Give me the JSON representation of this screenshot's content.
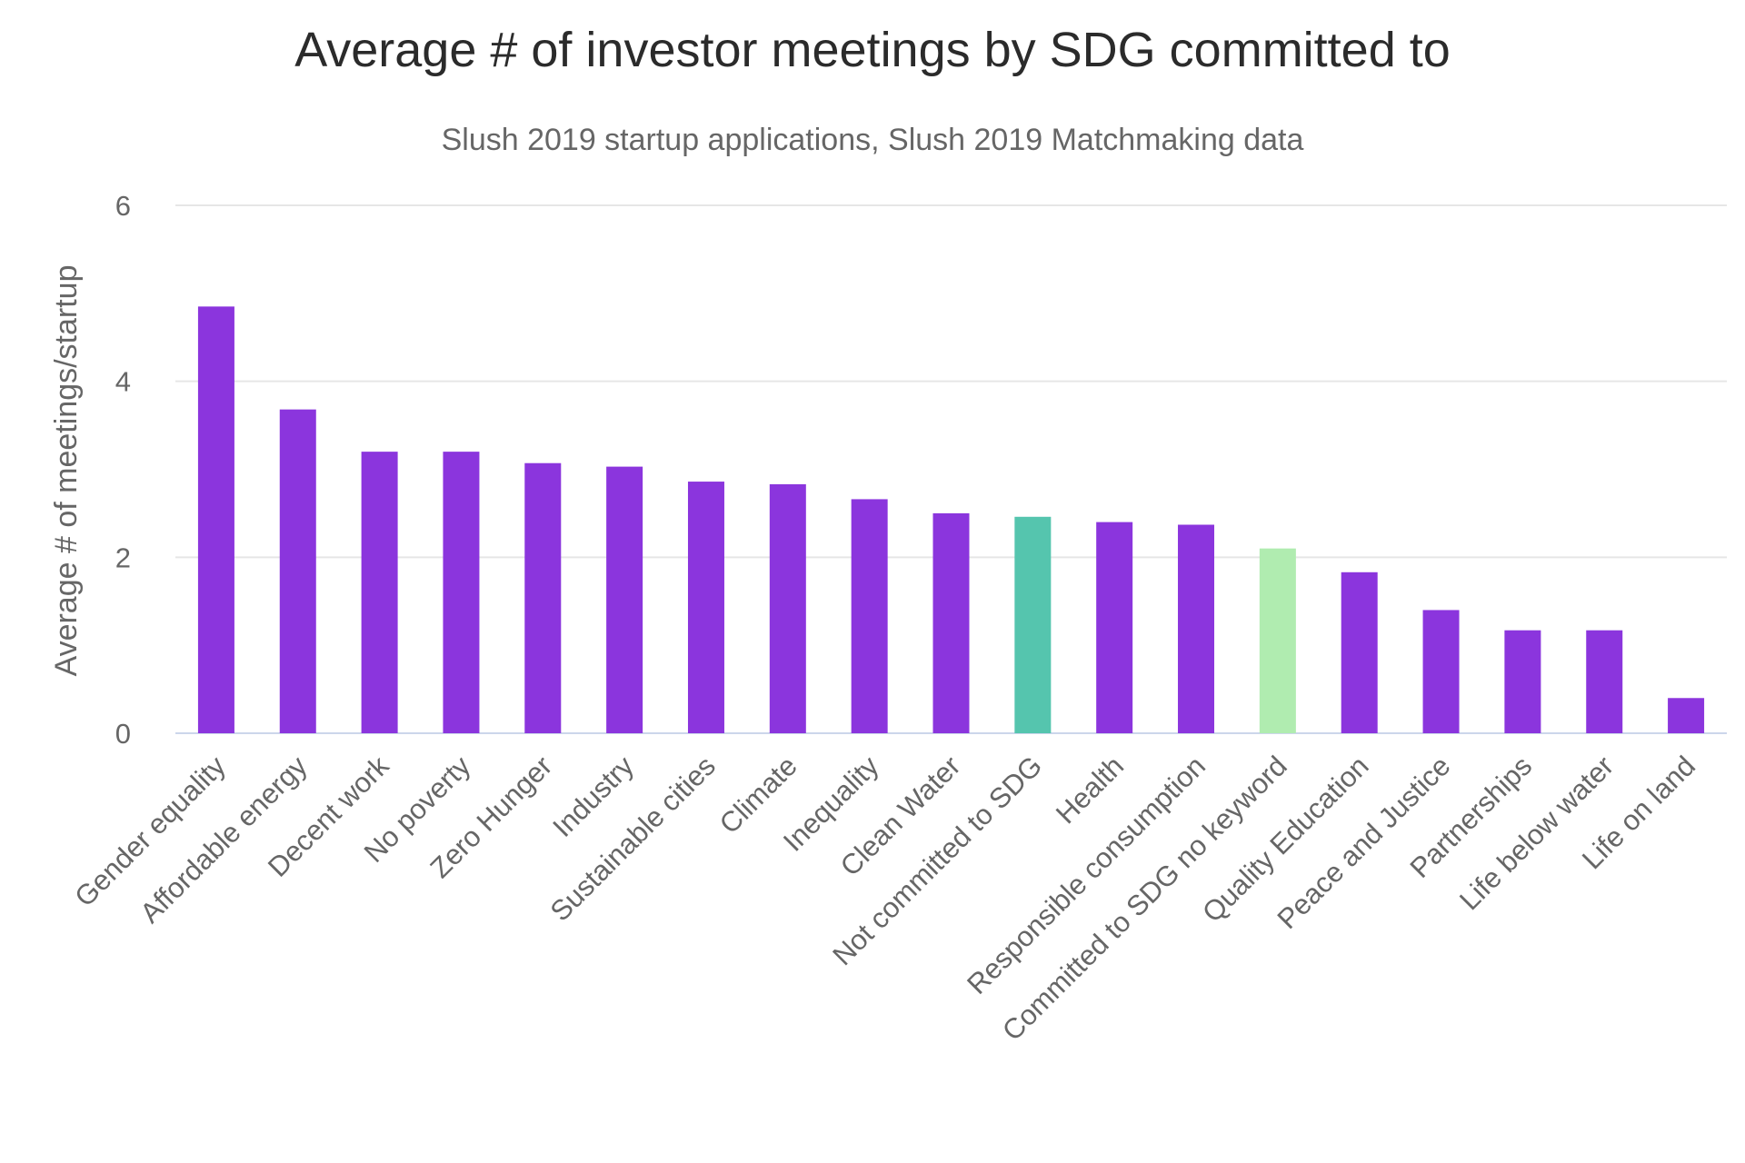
{
  "chart_data": {
    "type": "bar",
    "title": "Average # of investor meetings by SDG committed to",
    "subtitle": "Slush 2019 startup applications, Slush 2019 Matchmaking data",
    "xlabel": "",
    "ylabel": "Average # of meetings/startup",
    "ylim": [
      0,
      6
    ],
    "yticks": [
      0,
      2,
      4,
      6
    ],
    "grid": true,
    "legend": "none",
    "categories": [
      "Gender equality",
      "Affordable energy",
      "Decent work",
      "No poverty",
      "Zero Hunger",
      "Industry",
      "Sustainable cities",
      "Climate",
      "Inequality",
      "Clean Water",
      "Not committed to SDG",
      "Health",
      "Responsible consumption",
      "Committed to SDG no keyword",
      "Quality Education",
      "Peace and Justice",
      "Partnerships",
      "Life below water",
      "Life on land"
    ],
    "values": [
      4.85,
      3.68,
      3.2,
      3.2,
      3.07,
      3.03,
      2.86,
      2.83,
      2.66,
      2.5,
      2.46,
      2.4,
      2.37,
      2.1,
      1.83,
      1.4,
      1.17,
      1.17,
      0.4
    ],
    "colors": [
      "#8b35dd",
      "#8b35dd",
      "#8b35dd",
      "#8b35dd",
      "#8b35dd",
      "#8b35dd",
      "#8b35dd",
      "#8b35dd",
      "#8b35dd",
      "#8b35dd",
      "#55c5ae",
      "#8b35dd",
      "#8b35dd",
      "#b0ecb0",
      "#8b35dd",
      "#8b35dd",
      "#8b35dd",
      "#8b35dd",
      "#8b35dd"
    ]
  }
}
